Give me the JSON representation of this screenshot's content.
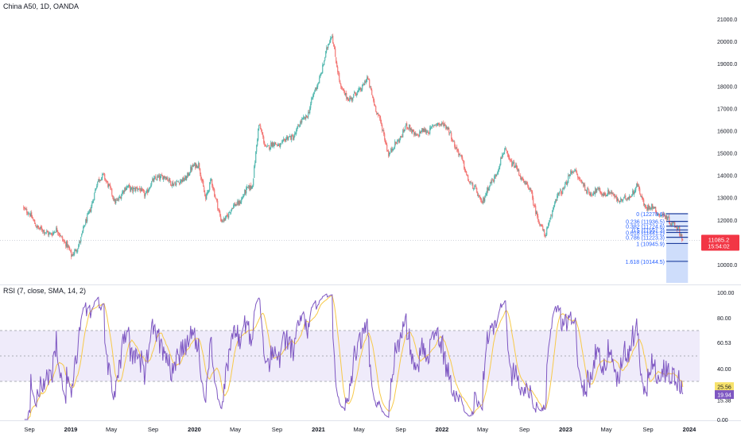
{
  "header": {
    "symbol_line": "China A50, 1D, OANDA"
  },
  "rsi_header": {
    "label": "RSI (7, close, SMA, 14, 2)"
  },
  "colors": {
    "up": "#26a69a",
    "down": "#ef5350",
    "rsi": "#7e57c2",
    "rsi_ma": "#f7c948",
    "rsi_band_fill": "#efebfa",
    "fib_line": "#1f3f9e",
    "fib_fill": "#c9d9fb",
    "fib_text": "#2962ff",
    "price_badge": "#f23645",
    "rsi_badge": "#7e57c2",
    "rsi_ma_badge": "#f7e26b",
    "axis_text": "#131722"
  },
  "chart_data": [
    {
      "type": "candlestick",
      "title": "China A50, 1D, OANDA",
      "x_ticks": [
        "Sep",
        "2019",
        "May",
        "Sep",
        "2020",
        "May",
        "Sep",
        "2021",
        "May",
        "Sep",
        "2022",
        "May",
        "Sep",
        "2023",
        "May",
        "Sep",
        "2024"
      ],
      "y_ticks": [
        10000,
        11000,
        12000,
        13000,
        14000,
        15000,
        16000,
        17000,
        18000,
        19000,
        20000,
        21000
      ],
      "ylim": [
        9200,
        21300
      ],
      "grid": false,
      "series": [
        {
          "name": "China A50",
          "close_path": [
            [
              "2018-08-15",
              12600
            ],
            [
              "2018-09-10",
              12000
            ],
            [
              "2018-10-15",
              11400
            ],
            [
              "2018-11-20",
              11500
            ],
            [
              "2018-12-20",
              10950
            ],
            [
              "2019-01-03",
              10300
            ],
            [
              "2019-02-01",
              11200
            ],
            [
              "2019-02-25",
              12400
            ],
            [
              "2019-03-20",
              13600
            ],
            [
              "2019-04-08",
              14100
            ],
            [
              "2019-05-10",
              12800
            ],
            [
              "2019-06-20",
              13500
            ],
            [
              "2019-08-10",
              13200
            ],
            [
              "2019-09-15",
              14000
            ],
            [
              "2019-11-15",
              13600
            ],
            [
              "2020-01-14",
              14600
            ],
            [
              "2020-02-03",
              12800
            ],
            [
              "2020-02-20",
              13900
            ],
            [
              "2020-03-19",
              11900
            ],
            [
              "2020-05-15",
              12900
            ],
            [
              "2020-06-20",
              13600
            ],
            [
              "2020-07-09",
              16200
            ],
            [
              "2020-07-30",
              15300
            ],
            [
              "2020-09-10",
              15400
            ],
            [
              "2020-10-20",
              15800
            ],
            [
              "2020-12-01",
              16800
            ],
            [
              "2021-01-01",
              18200
            ],
            [
              "2021-02-10",
              20400
            ],
            [
              "2021-03-08",
              17800
            ],
            [
              "2021-04-10",
              17400
            ],
            [
              "2021-05-25",
              18300
            ],
            [
              "2021-06-15",
              17300
            ],
            [
              "2021-07-28",
              15000
            ],
            [
              "2021-08-20",
              15400
            ],
            [
              "2021-09-15",
              16200
            ],
            [
              "2021-10-20",
              15800
            ],
            [
              "2021-12-10",
              16200
            ],
            [
              "2022-01-05",
              16400
            ],
            [
              "2022-02-15",
              15200
            ],
            [
              "2022-03-15",
              14000
            ],
            [
              "2022-04-27",
              12800
            ],
            [
              "2022-06-01",
              13800
            ],
            [
              "2022-07-05",
              15100
            ],
            [
              "2022-08-10",
              14200
            ],
            [
              "2022-09-15",
              13400
            ],
            [
              "2022-10-31",
              11200
            ],
            [
              "2022-11-30",
              12800
            ],
            [
              "2023-01-27",
              14300
            ],
            [
              "2023-03-01",
              13300
            ],
            [
              "2023-05-10",
              13200
            ],
            [
              "2023-06-20",
              12800
            ],
            [
              "2023-07-31",
              13500
            ],
            [
              "2023-08-25",
              12600
            ],
            [
              "2023-09-20",
              12500
            ],
            [
              "2023-10-20",
              12100
            ],
            [
              "2023-11-15",
              11900
            ],
            [
              "2023-12-15",
              11085
            ]
          ]
        }
      ],
      "current_price": {
        "value": "11085.2",
        "countdown": "15:54:02"
      },
      "fibonacci_retracement": {
        "levels": [
          {
            "ratio": 0,
            "label": "0 (12278.6)",
            "value": 12278.6
          },
          {
            "ratio": 0.236,
            "label": "0.236 (11936.5)",
            "value": 11936.5
          },
          {
            "ratio": 0.382,
            "label": "0.382 (11724.6)",
            "value": 11724.6
          },
          {
            "ratio": 0.5,
            "label": "0.5 (11551.2)",
            "value": 11551.2
          },
          {
            "ratio": 0.618,
            "label": "0.618 (11441.2)",
            "value": 11441.2
          },
          {
            "ratio": 0.786,
            "label": "0.786 (11223.3)",
            "value": 11223.3
          },
          {
            "ratio": 1,
            "label": "1 (10945.9)",
            "value": 10945.9
          },
          {
            "ratio": 1.618,
            "label": "1.618 (10144.5)",
            "value": 10144.5
          }
        ],
        "start_date": "2023-10-25",
        "end_date": "2023-12-28"
      }
    },
    {
      "type": "line",
      "title": "RSI (7, close, SMA, 14, 2)",
      "y_ticks": [
        0.0,
        20.0,
        40.0,
        60.53,
        80.0,
        100.0
      ],
      "ylim": [
        0,
        100
      ],
      "band": [
        30,
        70
      ],
      "midline": 50,
      "series": [
        {
          "name": "RSI",
          "current": "19.94"
        },
        {
          "name": "RSI MA",
          "current": "25.56"
        }
      ],
      "value_labels": [
        "15.38"
      ]
    }
  ]
}
